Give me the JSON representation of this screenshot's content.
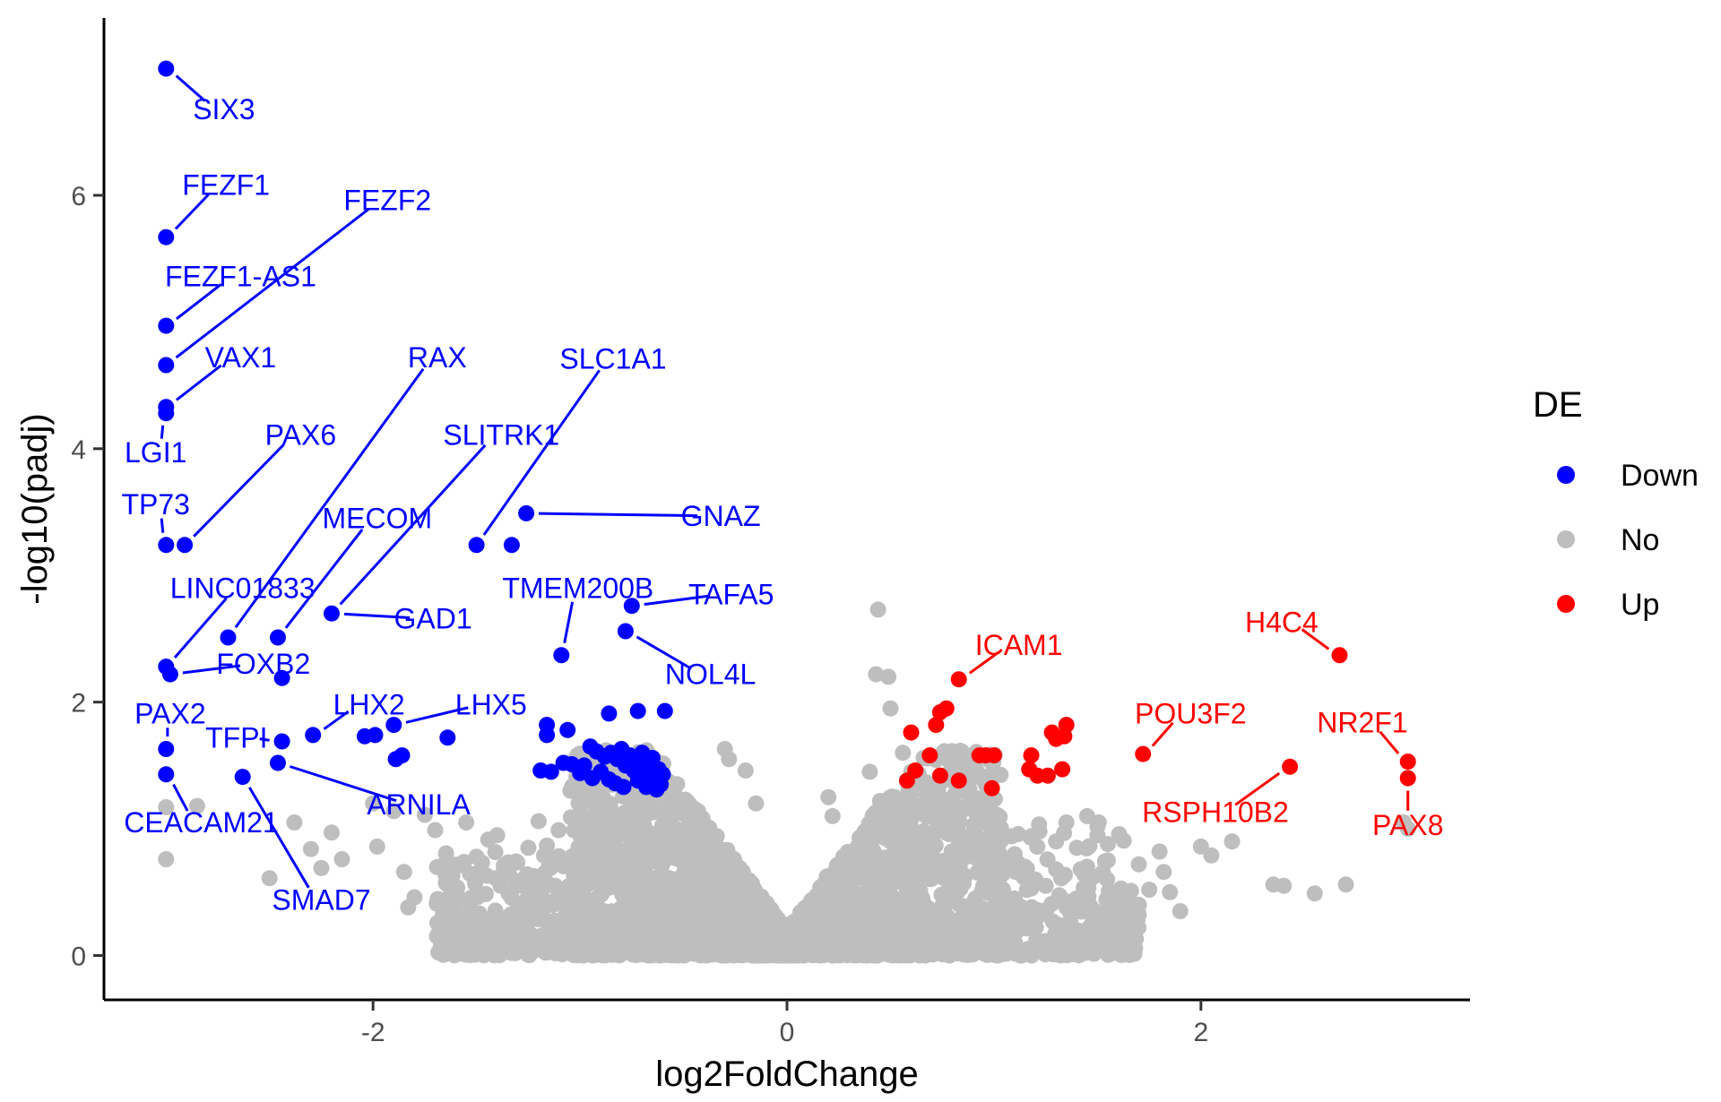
{
  "chart_data": {
    "type": "scatter",
    "title": "",
    "xlabel": "log2FoldChange",
    "ylabel": "-log10(padj)",
    "xlim": [
      -3.3,
      3.3
    ],
    "ylim": [
      -0.35,
      7.4
    ],
    "x_ticks": [
      {
        "value": -2,
        "label": "-2"
      },
      {
        "value": 0,
        "label": "0"
      },
      {
        "value": 2,
        "label": "2"
      }
    ],
    "y_ticks": [
      {
        "value": 0,
        "label": "0"
      },
      {
        "value": 2,
        "label": "2"
      },
      {
        "value": 4,
        "label": "4"
      },
      {
        "value": 6,
        "label": "6"
      }
    ],
    "grid": false,
    "legend": {
      "title": "DE",
      "position": "right",
      "entries": [
        {
          "label": "Down",
          "color": "#0000ff"
        },
        {
          "label": "No",
          "color": "#bebebe"
        },
        {
          "label": "Up",
          "color": "#ff0000"
        }
      ]
    },
    "series": [
      {
        "name": "Down",
        "color": "#0000ff",
        "points": [
          [
            -3.0,
            7.0
          ],
          [
            -3.0,
            5.67
          ],
          [
            -3.0,
            4.97
          ],
          [
            -3.0,
            4.66
          ],
          [
            -3.0,
            4.33
          ],
          [
            -3.0,
            4.28
          ],
          [
            -3.0,
            3.24
          ],
          [
            -2.91,
            3.24
          ],
          [
            -3.0,
            2.28
          ],
          [
            -2.98,
            2.22
          ],
          [
            -3.0,
            1.63
          ],
          [
            -3.0,
            1.43
          ],
          [
            -2.7,
            2.51
          ],
          [
            -2.46,
            2.51
          ],
          [
            -2.44,
            2.19
          ],
          [
            -2.2,
            2.7
          ],
          [
            -2.44,
            1.69
          ],
          [
            -2.29,
            1.74
          ],
          [
            -2.46,
            1.52
          ],
          [
            -2.63,
            1.41
          ],
          [
            -2.04,
            1.73
          ],
          [
            -1.99,
            1.74
          ],
          [
            -1.9,
            1.82
          ],
          [
            -1.89,
            1.55
          ],
          [
            -1.86,
            1.58
          ],
          [
            -1.64,
            1.72
          ],
          [
            -1.5,
            3.24
          ],
          [
            -1.33,
            3.24
          ],
          [
            -1.26,
            3.49
          ],
          [
            -1.09,
            2.37
          ],
          [
            -0.75,
            2.76
          ],
          [
            -0.78,
            2.56
          ],
          [
            -0.59,
            1.93
          ],
          [
            -0.72,
            1.93
          ],
          [
            -0.86,
            1.91
          ],
          [
            -1.16,
            1.82
          ],
          [
            -1.16,
            1.74
          ],
          [
            -1.06,
            1.78
          ],
          [
            -1.04,
            1.51
          ],
          [
            -1.14,
            1.45
          ],
          [
            -1.19,
            1.46
          ],
          [
            -1.08,
            1.52
          ],
          [
            -0.95,
            1.65
          ],
          [
            -0.92,
            1.61
          ],
          [
            -0.88,
            1.57
          ],
          [
            -0.85,
            1.6
          ],
          [
            -0.82,
            1.55
          ],
          [
            -0.8,
            1.63
          ],
          [
            -0.78,
            1.5
          ],
          [
            -0.76,
            1.58
          ],
          [
            -0.74,
            1.46
          ],
          [
            -0.72,
            1.52
          ],
          [
            -0.7,
            1.6
          ],
          [
            -0.69,
            1.42
          ],
          [
            -0.67,
            1.49
          ],
          [
            -0.65,
            1.56
          ],
          [
            -0.64,
            1.4
          ],
          [
            -0.62,
            1.47
          ],
          [
            -0.61,
            1.35
          ],
          [
            -0.6,
            1.43
          ],
          [
            -0.9,
            1.45
          ],
          [
            -0.86,
            1.39
          ],
          [
            -0.83,
            1.36
          ],
          [
            -0.79,
            1.33
          ],
          [
            -0.72,
            1.38
          ],
          [
            -0.68,
            1.33
          ],
          [
            -0.63,
            1.31
          ],
          [
            -0.98,
            1.5
          ],
          [
            -1.0,
            1.44
          ],
          [
            -0.94,
            1.4
          ]
        ]
      },
      {
        "name": "No",
        "color": "#bebebe",
        "points": [
          [
            -3.0,
            1.17
          ],
          [
            -3.0,
            0.76
          ],
          [
            -2.85,
            1.18
          ],
          [
            -2.5,
            0.61
          ],
          [
            -2.38,
            1.05
          ],
          [
            -2.3,
            0.84
          ],
          [
            -2.25,
            0.69
          ],
          [
            -2.2,
            0.97
          ],
          [
            -2.15,
            0.76
          ],
          [
            -2.0,
            1.2
          ],
          [
            -1.98,
            0.86
          ],
          [
            -1.9,
            1.14
          ],
          [
            -1.85,
            0.66
          ],
          [
            -1.83,
            0.38
          ],
          [
            -1.8,
            0.46
          ],
          [
            -1.75,
            1.11
          ],
          [
            -1.7,
            0.99
          ],
          [
            -1.65,
            0.64
          ],
          [
            -1.62,
            0.44
          ],
          [
            -1.6,
            0.33
          ],
          [
            -1.55,
            1.05
          ],
          [
            -1.5,
            0.78
          ],
          [
            -1.45,
            0.63
          ],
          [
            -1.4,
            0.95
          ],
          [
            -1.35,
            0.28
          ],
          [
            -1.3,
            0.37
          ],
          [
            -1.25,
            0.85
          ],
          [
            -1.2,
            1.06
          ],
          [
            -1.15,
            0.7
          ],
          [
            -1.1,
            0.52
          ],
          [
            -1.0,
            0.1
          ],
          [
            -0.85,
            0.04
          ],
          [
            -0.3,
            1.63
          ],
          [
            -0.28,
            1.55
          ],
          [
            -0.2,
            1.46
          ],
          [
            -0.15,
            1.2
          ],
          [
            0.44,
            2.73
          ],
          [
            0.2,
            1.25
          ],
          [
            0.22,
            1.1
          ],
          [
            0.4,
            1.45
          ],
          [
            0.45,
            1.22
          ],
          [
            0.43,
            2.22
          ],
          [
            0.49,
            2.2
          ],
          [
            0.5,
            1.95
          ],
          [
            0.56,
            1.6
          ],
          [
            0.6,
            1.45
          ],
          [
            0.9,
            1.2
          ],
          [
            1.0,
            1.1
          ],
          [
            1.05,
            0.95
          ],
          [
            1.1,
            0.8
          ],
          [
            1.15,
            0.7
          ],
          [
            1.2,
            0.6
          ],
          [
            1.25,
            0.55
          ],
          [
            1.3,
            0.9
          ],
          [
            1.35,
            1.05
          ],
          [
            1.4,
            0.85
          ],
          [
            1.45,
            0.7
          ],
          [
            1.5,
            0.95
          ],
          [
            1.55,
            0.75
          ],
          [
            1.6,
            0.5
          ],
          [
            1.65,
            0.45
          ],
          [
            1.7,
            0.4
          ],
          [
            1.75,
            0.52
          ],
          [
            1.8,
            0.82
          ],
          [
            1.82,
            0.66
          ],
          [
            1.85,
            0.5
          ],
          [
            1.9,
            0.35
          ],
          [
            2.0,
            0.86
          ],
          [
            2.05,
            0.79
          ],
          [
            2.15,
            0.9
          ],
          [
            2.35,
            0.56
          ],
          [
            2.4,
            0.55
          ],
          [
            2.55,
            0.49
          ],
          [
            2.7,
            0.56
          ],
          [
            3.0,
            1.0
          ],
          [
            2.98,
            1.05
          ],
          [
            1.45,
            1.1
          ],
          [
            1.5,
            1.02
          ],
          [
            1.55,
            0.88
          ],
          [
            1.48,
            0.62
          ],
          [
            1.52,
            0.28
          ],
          [
            1.6,
            0.3
          ],
          [
            1.7,
            0.72
          ],
          [
            1.22,
            0.98
          ],
          [
            1.3,
            0.68
          ],
          [
            1.35,
            0.38
          ],
          [
            1.1,
            0.45
          ],
          [
            0.95,
            0.08
          ]
        ]
      },
      {
        "name": "Up",
        "color": "#ff0000",
        "points": [
          [
            0.83,
            2.18
          ],
          [
            0.77,
            1.95
          ],
          [
            0.74,
            1.92
          ],
          [
            0.72,
            1.82
          ],
          [
            0.6,
            1.76
          ],
          [
            0.58,
            1.38
          ],
          [
            0.62,
            1.46
          ],
          [
            0.69,
            1.58
          ],
          [
            0.74,
            1.42
          ],
          [
            0.83,
            1.38
          ],
          [
            0.93,
            1.58
          ],
          [
            0.96,
            1.58
          ],
          [
            1.0,
            1.58
          ],
          [
            0.99,
            1.32
          ],
          [
            1.17,
            1.47
          ],
          [
            1.18,
            1.58
          ],
          [
            1.21,
            1.42
          ],
          [
            1.26,
            1.42
          ],
          [
            1.3,
            1.71
          ],
          [
            1.34,
            1.73
          ],
          [
            1.35,
            1.82
          ],
          [
            1.33,
            1.47
          ],
          [
            1.28,
            1.76
          ],
          [
            1.72,
            1.59
          ],
          [
            2.43,
            1.49
          ],
          [
            2.67,
            2.37
          ],
          [
            3.0,
            1.53
          ],
          [
            3.0,
            1.4
          ]
        ]
      }
    ],
    "labels": [
      {
        "text": "SIX3",
        "x": -3.0,
        "y": 7.0,
        "tx": -2.72,
        "ty": 6.68,
        "series": "Down"
      },
      {
        "text": "FEZF1",
        "x": -3.0,
        "y": 5.67,
        "tx": -2.71,
        "ty": 6.08,
        "series": "Down"
      },
      {
        "text": "FEZF2",
        "x": -3.0,
        "y": 4.66,
        "tx": -1.93,
        "ty": 5.96,
        "series": "Down"
      },
      {
        "text": "FEZF1-AS1",
        "x": -3.0,
        "y": 4.97,
        "tx": -2.64,
        "ty": 5.36,
        "series": "Down"
      },
      {
        "text": "VAX1",
        "x": -3.0,
        "y": 4.33,
        "tx": -2.64,
        "ty": 4.72,
        "series": "Down"
      },
      {
        "text": "RAX",
        "x": -2.7,
        "y": 2.51,
        "tx": -1.69,
        "ty": 4.72,
        "series": "Down"
      },
      {
        "text": "SLC1A1",
        "x": -1.5,
        "y": 3.24,
        "tx": -0.84,
        "ty": 4.71,
        "series": "Down"
      },
      {
        "text": "LGI1",
        "x": -3.0,
        "y": 4.28,
        "tx": -3.05,
        "ty": 3.97,
        "series": "Down"
      },
      {
        "text": "PAX6",
        "x": -2.91,
        "y": 3.24,
        "tx": -2.35,
        "ty": 4.11,
        "series": "Down"
      },
      {
        "text": "SLITRK1",
        "x": -2.2,
        "y": 2.7,
        "tx": -1.38,
        "ty": 4.11,
        "series": "Down"
      },
      {
        "text": "TP73",
        "x": -3.0,
        "y": 3.24,
        "tx": -3.05,
        "ty": 3.56,
        "series": "Down"
      },
      {
        "text": "MECOM",
        "x": -2.46,
        "y": 2.51,
        "tx": -1.98,
        "ty": 3.45,
        "series": "Down"
      },
      {
        "text": "GNAZ",
        "x": -1.26,
        "y": 3.49,
        "tx": -0.32,
        "ty": 3.47,
        "series": "Down"
      },
      {
        "text": "LINC01833",
        "x": -3.0,
        "y": 2.28,
        "tx": -2.63,
        "ty": 2.9,
        "series": "Down"
      },
      {
        "text": "TMEM200B",
        "x": -1.09,
        "y": 2.37,
        "tx": -1.01,
        "ty": 2.9,
        "series": "Down"
      },
      {
        "text": "TAFA5",
        "x": -0.75,
        "y": 2.76,
        "tx": -0.27,
        "ty": 2.85,
        "series": "Down"
      },
      {
        "text": "GAD1",
        "x": -2.2,
        "y": 2.7,
        "tx": -1.71,
        "ty": 2.66,
        "series": "Down"
      },
      {
        "text": "FOXB2",
        "x": -2.98,
        "y": 2.22,
        "tx": -2.53,
        "ty": 2.3,
        "series": "Down"
      },
      {
        "text": "NOL4L",
        "x": -0.78,
        "y": 2.56,
        "tx": -0.37,
        "ty": 2.22,
        "series": "Down"
      },
      {
        "text": "LHX2",
        "x": -2.29,
        "y": 1.74,
        "tx": -2.02,
        "ty": 1.98,
        "series": "Down"
      },
      {
        "text": "LHX5",
        "x": -1.9,
        "y": 1.82,
        "tx": -1.43,
        "ty": 1.98,
        "series": "Down"
      },
      {
        "text": "PAX2",
        "x": -3.0,
        "y": 1.63,
        "tx": -2.98,
        "ty": 1.91,
        "series": "Down"
      },
      {
        "text": "TFPI",
        "x": -2.44,
        "y": 1.69,
        "tx": -2.66,
        "ty": 1.72,
        "series": "Down"
      },
      {
        "text": "ARNILA",
        "x": -2.46,
        "y": 1.52,
        "tx": -1.78,
        "ty": 1.19,
        "series": "Down"
      },
      {
        "text": "CEACAM21",
        "x": -3.0,
        "y": 1.43,
        "tx": -2.83,
        "ty": 1.05,
        "series": "Down"
      },
      {
        "text": "SMAD7",
        "x": -2.63,
        "y": 1.41,
        "tx": -2.25,
        "ty": 0.44,
        "series": "Down"
      },
      {
        "text": "ICAM1",
        "x": 0.83,
        "y": 2.18,
        "tx": 1.12,
        "ty": 2.45,
        "series": "Up"
      },
      {
        "text": "H4C4",
        "x": 2.67,
        "y": 2.37,
        "tx": 2.39,
        "ty": 2.63,
        "series": "Up"
      },
      {
        "text": "POU3F2",
        "x": 1.72,
        "y": 1.59,
        "tx": 1.95,
        "ty": 1.91,
        "series": "Up"
      },
      {
        "text": "NR2F1",
        "x": 3.0,
        "y": 1.53,
        "tx": 2.78,
        "ty": 1.84,
        "series": "Up"
      },
      {
        "text": "RSPH10B2",
        "x": 2.43,
        "y": 1.49,
        "tx": 2.07,
        "ty": 1.13,
        "series": "Up"
      },
      {
        "text": "PAX8",
        "x": 3.0,
        "y": 1.4,
        "tx": 3.0,
        "ty": 1.03,
        "series": "Up"
      }
    ]
  }
}
